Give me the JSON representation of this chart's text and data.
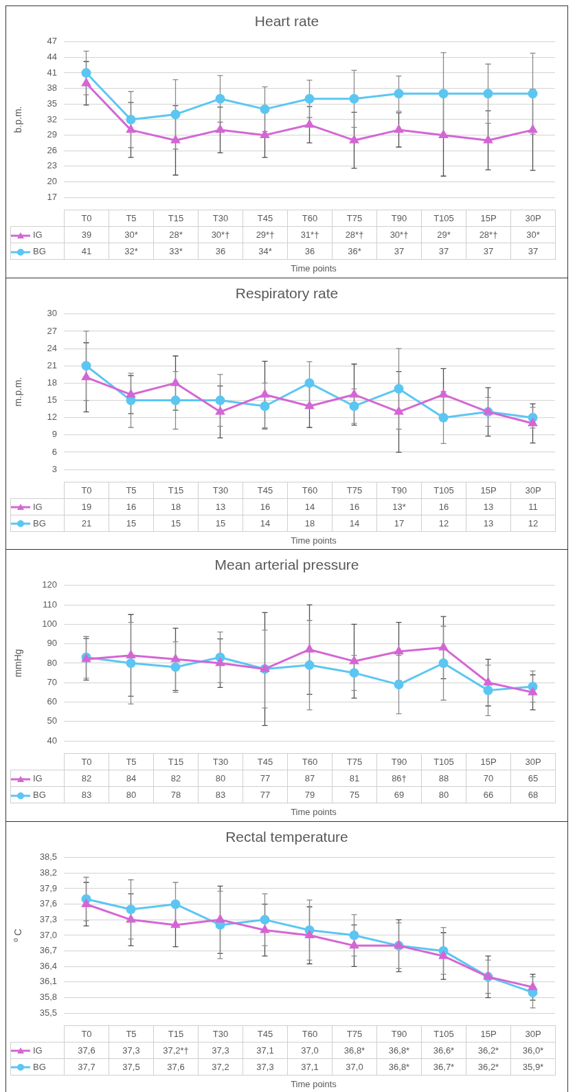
{
  "chart_data": [
    {
      "type": "line",
      "title": "Heart rate",
      "ylabel": "b.p.m.",
      "xlabel": "Time points",
      "categories": [
        "T0",
        "T5",
        "T15",
        "T30",
        "T45",
        "T60",
        "T75",
        "T90",
        "T105",
        "15P",
        "30P"
      ],
      "ylim": [
        17,
        47
      ],
      "yticks": [
        17,
        20,
        23,
        26,
        29,
        32,
        35,
        38,
        41,
        44,
        47
      ],
      "grid": "y",
      "legend": "bottom",
      "series": [
        {
          "name": "IG",
          "color": "#d466d4",
          "marker": "triangle",
          "values": [
            39,
            30,
            28,
            30,
            29,
            31,
            28,
            30,
            29,
            28,
            30
          ],
          "errors": [
            4.2,
            5.3,
            6.7,
            4.4,
            4.3,
            3.5,
            5.4,
            3.3,
            7.9,
            5.7,
            7.8
          ],
          "value_labels": [
            "39",
            "30*",
            "28*",
            "30*†",
            "29*†",
            "31*†",
            "28*†",
            "30*†",
            "29*",
            "28*†",
            "30*"
          ]
        },
        {
          "name": "BG",
          "color": "#5bc6f2",
          "marker": "circle",
          "values": [
            41,
            32,
            33,
            36,
            34,
            36,
            36,
            37,
            37,
            37,
            37
          ],
          "errors": [
            4.2,
            5.4,
            6.7,
            4.5,
            4.3,
            3.6,
            5.5,
            3.4,
            7.9,
            5.7,
            7.8
          ],
          "value_labels": [
            "41",
            "32*",
            "33*",
            "36",
            "34*",
            "36",
            "36*",
            "37",
            "37",
            "37",
            "37"
          ]
        }
      ]
    },
    {
      "type": "line",
      "title": "Respiratory rate",
      "ylabel": "m.p.m.",
      "xlabel": "Time points",
      "categories": [
        "T0",
        "T5",
        "T15",
        "T30",
        "T45",
        "T60",
        "T75",
        "T90",
        "T105",
        "15P",
        "30P"
      ],
      "ylim": [
        3,
        30
      ],
      "yticks": [
        3,
        6,
        9,
        12,
        15,
        18,
        21,
        24,
        27,
        30
      ],
      "grid": "y",
      "legend": "bottom",
      "series": [
        {
          "name": "IG",
          "color": "#d466d4",
          "marker": "triangle",
          "values": [
            19,
            16,
            18,
            13,
            16,
            14,
            16,
            13,
            16,
            13,
            11
          ],
          "errors": [
            6,
            3.3,
            4.7,
            4.5,
            5.8,
            3.7,
            5.3,
            7,
            4.5,
            4.2,
            3.4
          ],
          "value_labels": [
            "19",
            "16",
            "18",
            "13",
            "16",
            "14",
            "16",
            "13*",
            "16",
            "13",
            "11"
          ]
        },
        {
          "name": "BG",
          "color": "#5bc6f2",
          "marker": "circle",
          "values": [
            21,
            15,
            15,
            15,
            14,
            18,
            14,
            17,
            12,
            13,
            12
          ],
          "errors": [
            6,
            4.7,
            5,
            4.5,
            4,
            3.7,
            3,
            7,
            4.5,
            2.5,
            1.8
          ],
          "value_labels": [
            "21",
            "15",
            "15",
            "15",
            "14",
            "18",
            "14",
            "17",
            "12",
            "13",
            "12"
          ]
        }
      ]
    },
    {
      "type": "line",
      "title": "Mean arterial pressure",
      "ylabel": "mmHg",
      "xlabel": "Time points",
      "categories": [
        "T0",
        "T5",
        "T15",
        "T30",
        "T45",
        "T60",
        "T75",
        "T90",
        "T105",
        "15P",
        "30P"
      ],
      "ylim": [
        40,
        120
      ],
      "yticks": [
        40,
        50,
        60,
        70,
        80,
        90,
        100,
        110,
        120
      ],
      "grid": "y",
      "legend": "bottom",
      "series": [
        {
          "name": "IG",
          "color": "#d466d4",
          "marker": "triangle",
          "values": [
            82,
            84,
            82,
            80,
            77,
            87,
            81,
            86,
            88,
            70,
            65
          ],
          "errors": [
            10.7,
            21,
            16,
            12.5,
            29,
            23,
            19,
            15,
            16,
            12,
            9
          ],
          "value_labels": [
            "82",
            "84",
            "82",
            "80",
            "77",
            "87",
            "81",
            "86†",
            "88",
            "70",
            "65"
          ]
        },
        {
          "name": "BG",
          "color": "#5bc6f2",
          "marker": "circle",
          "values": [
            83,
            80,
            78,
            83,
            77,
            79,
            75,
            69,
            80,
            66,
            68
          ],
          "errors": [
            10.7,
            21,
            13,
            13,
            20,
            23,
            9,
            15,
            19,
            13,
            8
          ],
          "value_labels": [
            "83",
            "80",
            "78",
            "83",
            "77",
            "79",
            "75",
            "69",
            "80",
            "66",
            "68"
          ]
        }
      ]
    },
    {
      "type": "line",
      "title": "Rectal temperature",
      "ylabel": "º C",
      "xlabel": "Time points",
      "categories": [
        "T0",
        "T5",
        "T15",
        "T30",
        "T45",
        "T60",
        "T75",
        "T90",
        "T105",
        "15P",
        "30P"
      ],
      "ylim": [
        35.5,
        38.5
      ],
      "yticks": [
        {
          "value": 35.5,
          "label": "35,5"
        },
        {
          "value": 35.8,
          "label": "35,8"
        },
        {
          "value": 36.1,
          "label": "36,1"
        },
        {
          "value": 36.4,
          "label": "36,4"
        },
        {
          "value": 36.7,
          "label": "36,7"
        },
        {
          "value": 37.0,
          "label": "37,0"
        },
        {
          "value": 37.3,
          "label": "37,3"
        },
        {
          "value": 37.6,
          "label": "37,6"
        },
        {
          "value": 37.9,
          "label": "37,9"
        },
        {
          "value": 38.2,
          "label": "38,2"
        },
        {
          "value": 38.5,
          "label": "38,5"
        }
      ],
      "grid": "y",
      "legend": "bottom",
      "series": [
        {
          "name": "IG",
          "color": "#d466d4",
          "marker": "triangle",
          "values": [
            37.6,
            37.3,
            37.2,
            37.3,
            37.1,
            37.0,
            36.8,
            36.8,
            36.6,
            36.2,
            36.0
          ],
          "errors": [
            0.42,
            0.5,
            0.42,
            0.65,
            0.5,
            0.55,
            0.4,
            0.5,
            0.45,
            0.4,
            0.25
          ],
          "value_labels": [
            "37,6",
            "37,3",
            "37,2*†",
            "37,3",
            "37,1",
            "37,0",
            "36,8*",
            "36,8*",
            "36,6*",
            "36,2*",
            "36,0*"
          ]
        },
        {
          "name": "BG",
          "color": "#5bc6f2",
          "marker": "circle",
          "values": [
            37.7,
            37.5,
            37.6,
            37.2,
            37.3,
            37.1,
            37.0,
            36.8,
            36.7,
            36.2,
            35.9
          ],
          "errors": [
            0.42,
            0.57,
            0.42,
            0.65,
            0.5,
            0.58,
            0.4,
            0.44,
            0.45,
            0.32,
            0.3
          ],
          "value_labels": [
            "37,7",
            "37,5",
            "37,6",
            "37,2",
            "37,3",
            "37,1",
            "37,0",
            "36,8*",
            "36,7*",
            "36,2*",
            "35,9*"
          ]
        }
      ]
    }
  ]
}
